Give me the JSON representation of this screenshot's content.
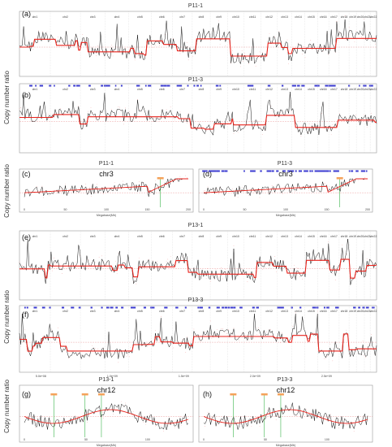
{
  "y_label": "Copy number ratio",
  "colors": {
    "copy_number": "#111111",
    "segment": "#e8231c",
    "scatter": "#f08a8a",
    "amplified_bins": "#3a3ad0",
    "marker": "#3ab54a",
    "label_tag": "#f4a25a"
  },
  "chart_data": [
    {
      "type": "line",
      "panel": "(a)",
      "title": "P11-1",
      "chromosomes": [
        "chr1",
        "chr2",
        "chr3",
        "chr4",
        "chr5",
        "chr6",
        "chr7",
        "chr8",
        "chr9",
        "chr10",
        "chr11",
        "chr12",
        "chr13",
        "chr14",
        "chr15",
        "chr16",
        "chr17",
        "chr18",
        "chr19",
        "chr20",
        "chr21",
        "chr22"
      ],
      "amplified_bins": false,
      "pattern": "profile",
      "seed": 3
    },
    {
      "type": "line",
      "panel": "(b)",
      "title": "P11-3",
      "chromosomes": [
        "chr1",
        "chr2",
        "chr3",
        "chr4",
        "chr5",
        "chr6",
        "chr7",
        "chr8",
        "chr9",
        "chr10",
        "chr11",
        "chr12",
        "chr13",
        "chr14",
        "chr15",
        "chr16",
        "chr17",
        "chr18",
        "chr19",
        "chr20",
        "chr21",
        "chr22"
      ],
      "amplified_bins": true,
      "pattern": "profile",
      "seed": 7
    },
    {
      "type": "line",
      "panel": "(c)",
      "title": "P11-1",
      "chromosome": "chr3",
      "xlabel": "Megabase(Mb)",
      "x_ticks": [
        "0",
        "50",
        "100",
        "150",
        "200"
      ],
      "xlim": [
        0,
        200
      ],
      "amplified_bins": false,
      "pattern": "chr3",
      "seed": 11
    },
    {
      "type": "line",
      "panel": "(d)",
      "title": "P11-3",
      "chromosome": "chr3",
      "xlabel": "Megabase(Mb)",
      "x_ticks": [
        "0",
        "50",
        "100",
        "150",
        "200"
      ],
      "xlim": [
        0,
        200
      ],
      "amplified_bins": true,
      "pattern": "chr3",
      "seed": 13
    },
    {
      "type": "line",
      "panel": "(e)",
      "title": "P13-1",
      "chromosomes": [
        "chr1",
        "chr2",
        "chr3",
        "chr4",
        "chr5",
        "chr6",
        "chr7",
        "chr8",
        "chr9",
        "chr10",
        "chr11",
        "chr12",
        "chr13",
        "chr14",
        "chr15",
        "chr16",
        "chr17",
        "chr18",
        "chr19",
        "chr20",
        "chr21",
        "chr22"
      ],
      "amplified_bins": false,
      "pattern": "profile",
      "seed": 17
    },
    {
      "type": "line",
      "panel": "(f)",
      "title": "P13-3",
      "chromosomes": [
        "chr1",
        "chr2",
        "chr3",
        "chr4",
        "chr5",
        "chr6",
        "chr7",
        "chr8",
        "chr9",
        "chr10",
        "chr11",
        "chr12",
        "chr13",
        "chr14",
        "chr15",
        "chr16",
        "chr17",
        "chr18",
        "chr19",
        "chr20",
        "chr21",
        "chr22"
      ],
      "amplified_bins": true,
      "pattern": "profile",
      "seed": 19,
      "x_ticks": [
        "5.0e+08",
        "1.0e+09",
        "1.5e+09",
        "2.0e+09",
        "2.5e+09"
      ]
    },
    {
      "type": "line",
      "panel": "(g)",
      "title": "P13-1",
      "chromosome": "chr12",
      "xlabel": "Megabase(Mb)",
      "x_ticks": [
        "0",
        "50",
        "100"
      ],
      "xlim": [
        0,
        133
      ],
      "amplified_bins": false,
      "pattern": "chr12",
      "seed": 23
    },
    {
      "type": "line",
      "panel": "(h)",
      "title": "P13-3",
      "chromosome": "chr12",
      "xlabel": "Megabase(Mb)",
      "x_ticks": [
        "0",
        "50",
        "100"
      ],
      "xlim": [
        0,
        133
      ],
      "amplified_bins": false,
      "pattern": "chr12",
      "seed": 29
    }
  ]
}
